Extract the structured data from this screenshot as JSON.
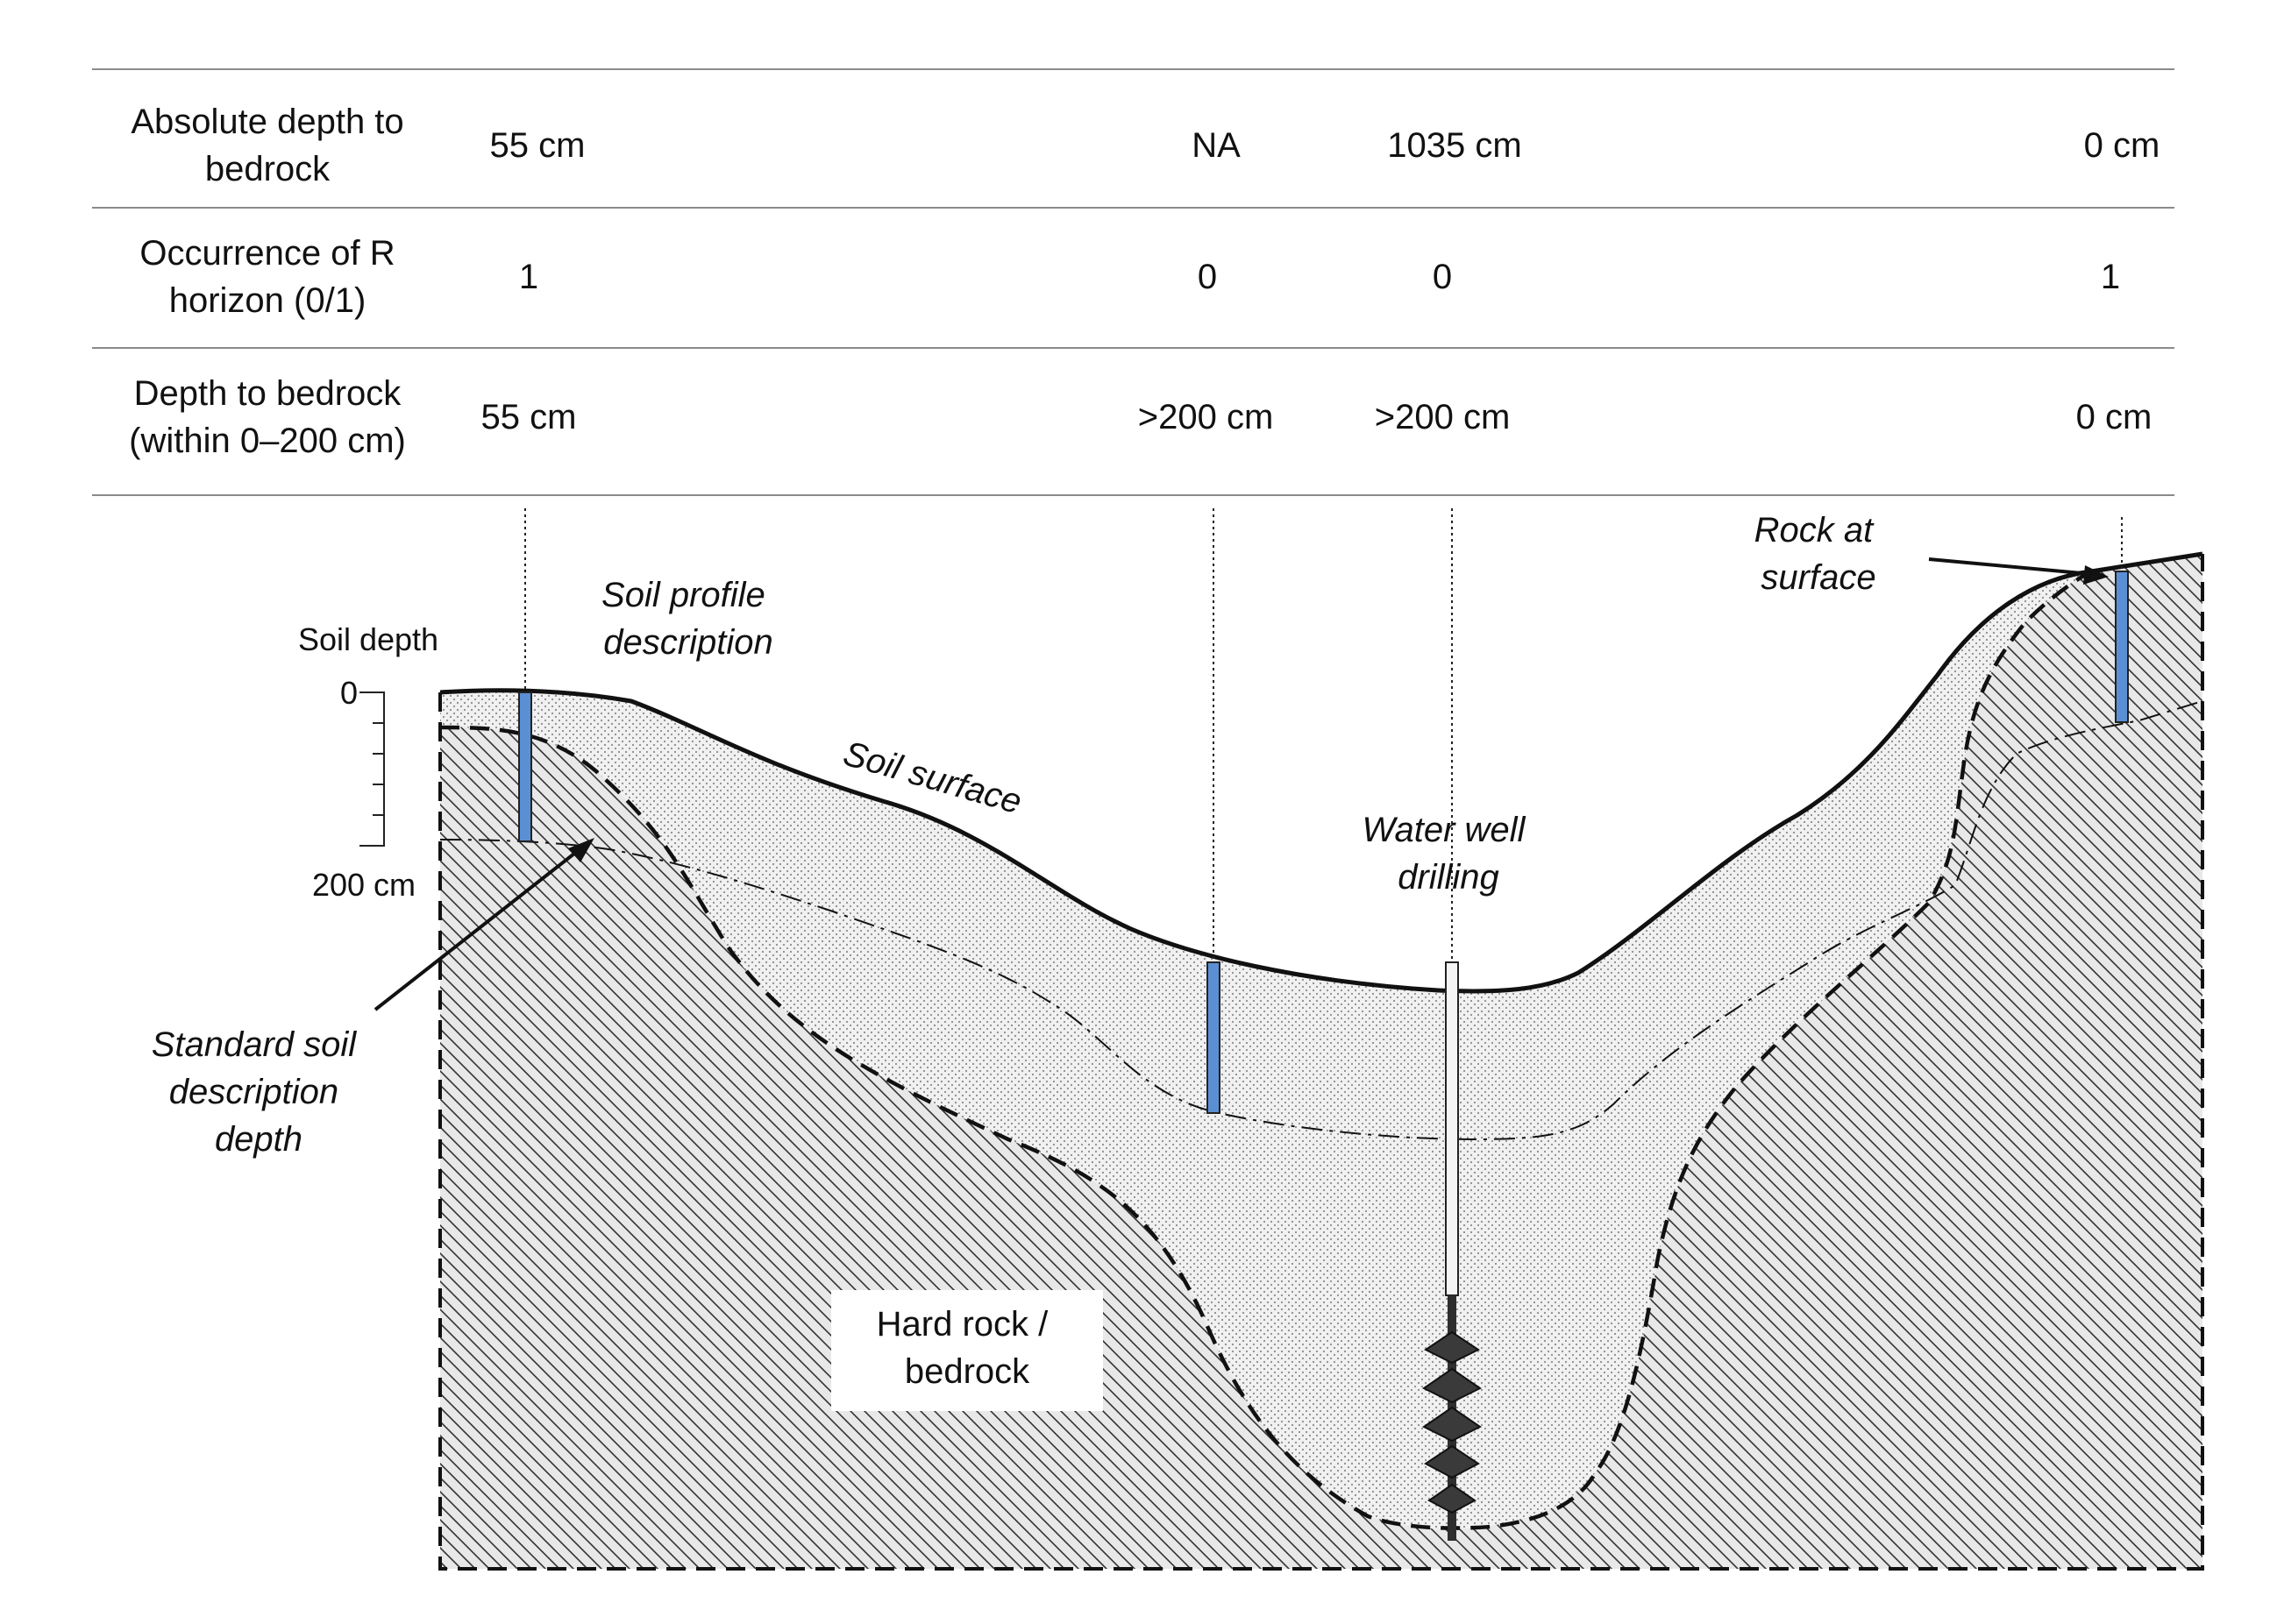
{
  "table": {
    "rows": [
      {
        "label_lines": [
          "Absolute depth to",
          "bedrock"
        ],
        "values": [
          "55 cm",
          "NA",
          "1035 cm",
          "0 cm"
        ]
      },
      {
        "label_lines": [
          "Occurrence of R",
          "horizon (0/1)"
        ],
        "values": [
          "1",
          "0",
          "0",
          "1"
        ]
      },
      {
        "label_lines": [
          "Depth to bedrock",
          "(within 0–200 cm)"
        ],
        "values": [
          "55 cm",
          ">200 cm",
          ">200 cm",
          "0 cm"
        ]
      }
    ]
  },
  "diagram": {
    "soil_depth_scale": {
      "title": "Soil depth",
      "top": "0",
      "bottom": "200 cm"
    },
    "labels": {
      "soil_profile": [
        "Soil profile",
        "description"
      ],
      "soil_surface": "Soil surface",
      "water_well": [
        "Water well",
        "drilling"
      ],
      "rock_at_surface": [
        "Rock at",
        "surface"
      ],
      "standard_depth": [
        "Standard soil",
        "description",
        "depth"
      ],
      "hard_rock": [
        "Hard rock /",
        "bedrock"
      ]
    },
    "colors": {
      "soil_core": "#5b8fd4",
      "soil_fill": "#ececec",
      "rock_fill": "#e4e4e4",
      "rule": "#8a8a8a"
    }
  }
}
